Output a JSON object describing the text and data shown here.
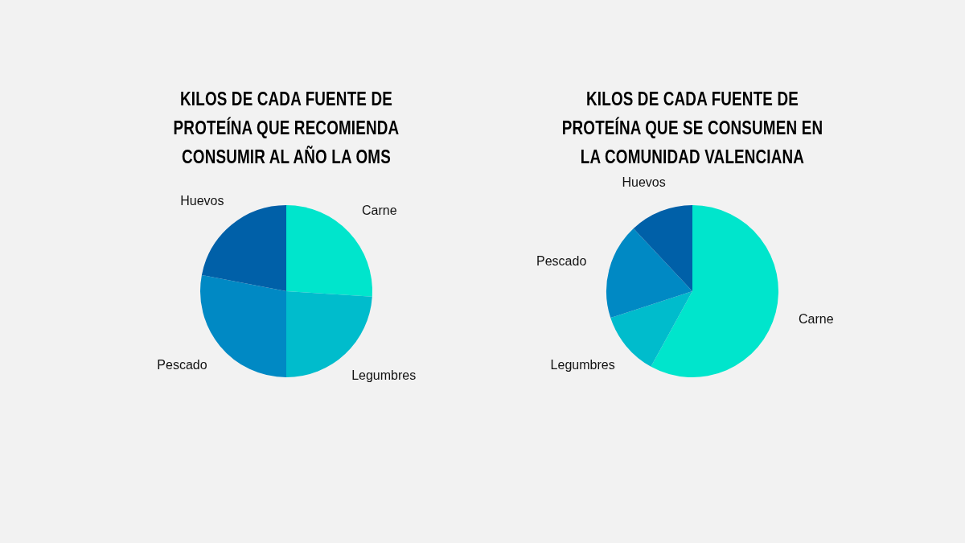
{
  "chart_data": [
    {
      "type": "pie",
      "title": "KILOS DE CADA FUENTE DE PROTEÍNA QUE RECOMIENDA CONSUMIR AL AÑO LA OMS",
      "categories": [
        "Carne",
        "Legumbres",
        "Pescado",
        "Huevos"
      ],
      "values": [
        26,
        24,
        28,
        22
      ],
      "colors": [
        "#00e5cc",
        "#00bccc",
        "#0089c4",
        "#0060a8"
      ],
      "legend": false
    },
    {
      "type": "pie",
      "title": "KILOS DE CADA FUENTE DE PROTEÍNA QUE SE CONSUMEN EN LA COMUNIDAD VALENCIANA",
      "categories": [
        "Carne",
        "Legumbres",
        "Pescado",
        "Huevos"
      ],
      "values": [
        58,
        12,
        18,
        12
      ],
      "colors": [
        "#00e5cc",
        "#00bccc",
        "#0089c4",
        "#0060a8"
      ],
      "legend": false
    }
  ]
}
